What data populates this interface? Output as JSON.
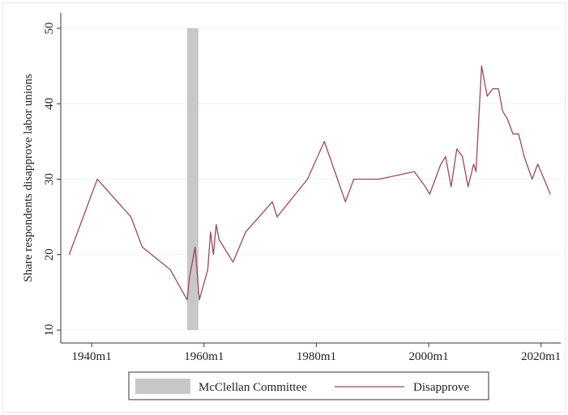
{
  "chart_data": {
    "type": "line",
    "title": "",
    "xlabel": "",
    "ylabel": "Share respondents disapprove labor unions",
    "xlim": [
      "1934m7",
      "2023m7"
    ],
    "ylim": [
      10,
      50
    ],
    "grid": true,
    "legend_position": "bottom",
    "x_ticks": [
      "1940m1",
      "1960m1",
      "1980m1",
      "2000m1",
      "2020m1"
    ],
    "y_ticks": [
      10,
      20,
      30,
      40,
      50
    ],
    "shaded_regions": [
      {
        "name": "McClellan Committee",
        "x_start": "1957m1",
        "x_end": "1959m1",
        "color": "#c8c8c8"
      }
    ],
    "series": [
      {
        "name": "Disapprove",
        "color": "#9b4a55",
        "x": [
          "1936m1",
          "1941m1",
          "1947m1",
          "1949m1",
          "1954m1",
          "1957m1",
          "1957m6",
          "1958m6",
          "1959m3",
          "1960m9",
          "1961m3",
          "1961m9",
          "1962m3",
          "1962m9",
          "1965m3",
          "1967m6",
          "1972m3",
          "1973m1",
          "1978m6",
          "1981m6",
          "1985m3",
          "1986m9",
          "1991m3",
          "1997m6",
          "1998m6",
          "1999m6",
          "2000m3",
          "2001m3",
          "2002m3",
          "2003m1",
          "2004m1",
          "2005m1",
          "2006m1",
          "2007m1",
          "2008m1",
          "2008m6",
          "2009m6",
          "2010m6",
          "2011m6",
          "2012m6",
          "2013m3",
          "2014m1",
          "2015m1",
          "2016m1",
          "2017m1",
          "2018m6",
          "2019m6",
          "2021m9"
        ],
        "values": [
          20,
          30,
          25,
          21,
          18,
          14,
          17,
          21,
          14,
          18,
          23,
          20,
          24,
          22,
          19,
          23,
          27,
          25,
          30,
          35,
          27,
          30,
          30,
          31,
          30,
          29,
          28,
          30,
          32,
          33,
          29,
          34,
          33,
          29,
          32,
          31,
          45,
          41,
          42,
          42,
          39,
          38,
          36,
          36,
          33,
          30,
          32,
          28
        ]
      }
    ]
  }
}
